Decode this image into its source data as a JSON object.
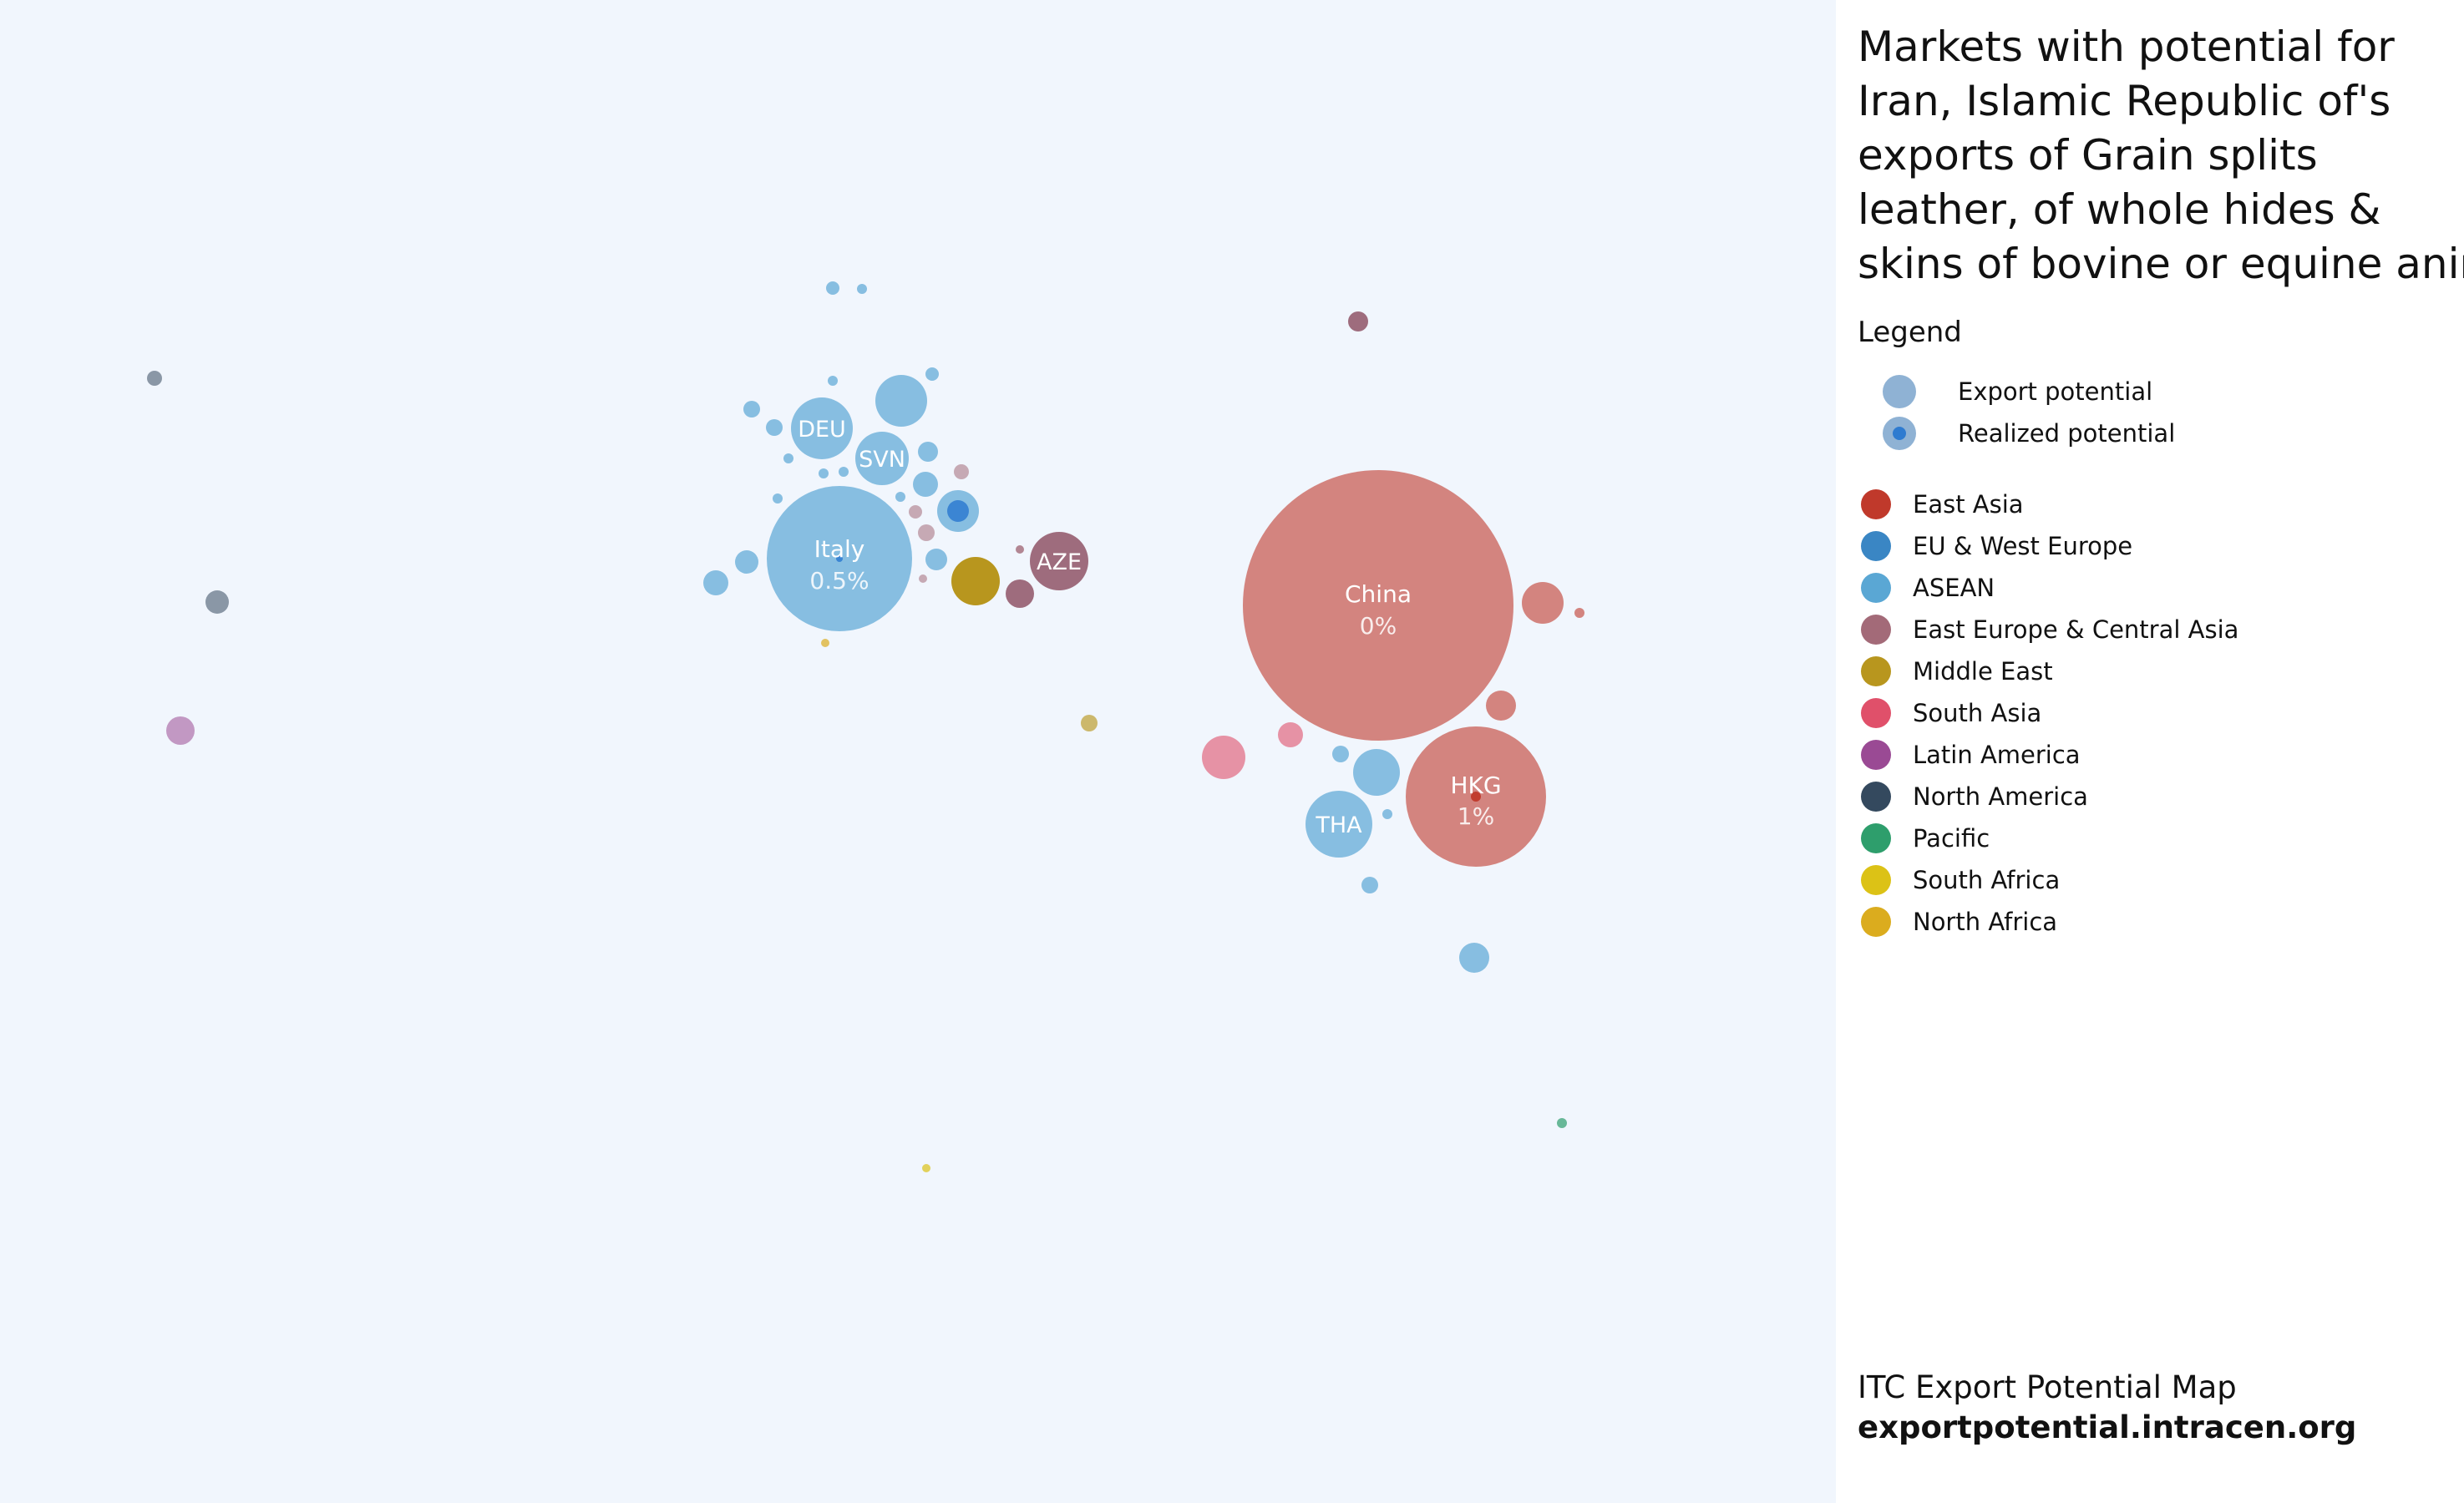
{
  "panel": {
    "title_lines": [
      "Markets with potential for",
      "Iran, Islamic Republic of's",
      "exports of Grain splits",
      "leather, of whole hides &",
      "skins of bovine or equine animals"
    ],
    "legend_heading": "Legend",
    "potential_types": [
      {
        "label": "Export potential",
        "icon": "export-potential-dot-icon"
      },
      {
        "label": "Realized potential",
        "icon": "realized-potential-dot-icon"
      }
    ],
    "regions": [
      {
        "label": "East Asia",
        "color": "#c0392b"
      },
      {
        "label": "EU & West Europe",
        "color": "#3a86c4"
      },
      {
        "label": "ASEAN",
        "color": "#5aa7d4"
      },
      {
        "label": "East Europe & Central Asia",
        "color": "#a36a78"
      },
      {
        "label": "Middle East",
        "color": "#b8961e"
      },
      {
        "label": "South Asia",
        "color": "#e0506a"
      },
      {
        "label": "Latin America",
        "color": "#9a4a94"
      },
      {
        "label": "North America",
        "color": "#34495e"
      },
      {
        "label": "Pacific",
        "color": "#2e9e6c"
      },
      {
        "label": "South Africa",
        "color": "#dcc216"
      },
      {
        "label": "North Africa",
        "color": "#dbac1e"
      }
    ],
    "footer_name": "ITC Export Potential Map",
    "footer_url": "exportpotential.intracen.org"
  },
  "bubble_labels": {
    "italy_name": "Italy",
    "italy_pct": "0.5%",
    "china_name": "China",
    "china_pct": "0%",
    "hkg_name": "HKG",
    "hkg_pct": "1%",
    "deu": "DEU",
    "svn": "SVN",
    "aze": "AZE",
    "tha": "THA"
  }
}
